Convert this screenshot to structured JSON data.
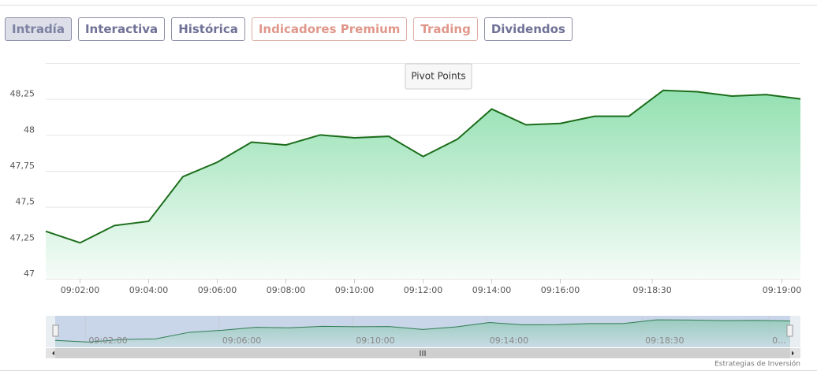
{
  "tabs": [
    {
      "label": "Intradía",
      "style": "selected"
    },
    {
      "label": "Interactiva",
      "style": "normal"
    },
    {
      "label": "Histórica",
      "style": "normal"
    },
    {
      "label": "Indicadores Premium",
      "style": "warm"
    },
    {
      "label": "Trading",
      "style": "warm"
    },
    {
      "label": "Dividendos",
      "style": "normal"
    }
  ],
  "pivot_button": "Pivot Points",
  "credit": "Estrategias de Inversión",
  "chart_data": {
    "type": "area",
    "values": [
      47.33,
      47.25,
      47.37,
      47.4,
      47.71,
      47.81,
      47.95,
      47.93,
      48.0,
      47.98,
      47.99,
      47.85,
      47.97,
      48.18,
      48.07,
      48.08,
      48.13,
      48.13,
      48.31,
      48.3,
      48.27,
      48.28,
      48.25
    ],
    "color": "#1b6d1b",
    "xlim": [
      0,
      22
    ],
    "xticks": [
      {
        "value": 1,
        "label": "09:02:00"
      },
      {
        "value": 3,
        "label": "09:04:00"
      },
      {
        "value": 5,
        "label": "09:06:00"
      },
      {
        "value": 7,
        "label": "09:08:00"
      },
      {
        "value": 9,
        "label": "09:10:00"
      },
      {
        "value": 11,
        "label": "09:12:00"
      },
      {
        "value": 13,
        "label": "09:14:00"
      },
      {
        "value": 15,
        "label": "09:16:00"
      },
      {
        "value": 17.68,
        "label": "09:18:30"
      },
      {
        "value": 21.46,
        "label": "09:19:00"
      }
    ],
    "ylim": [
      47,
      48.5
    ],
    "yticks": [
      47,
      {
        "value": 47.25,
        "label": "47,25"
      },
      {
        "value": 47.5,
        "label": "47,5"
      },
      {
        "value": 47.75,
        "label": "47,75"
      },
      48,
      {
        "value": 48.25,
        "label": "48,25"
      }
    ],
    "grid": true,
    "navigator_ticks": [
      {
        "value": 1,
        "label": "09:02:00"
      },
      {
        "value": 5,
        "label": "09:06:00"
      },
      {
        "value": 9,
        "label": "09:10:00"
      },
      {
        "value": 13,
        "label": "09:14:00"
      },
      {
        "value": 17.66,
        "label": "09:18:30"
      },
      {
        "value": 21.46,
        "label": "0..."
      }
    ]
  }
}
